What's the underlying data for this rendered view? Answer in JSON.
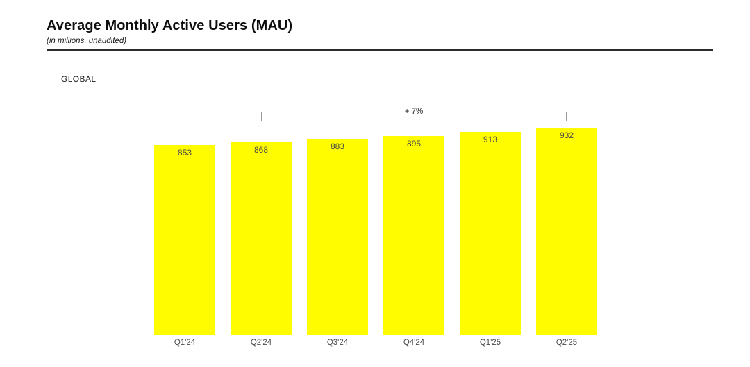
{
  "header": {
    "title": "Average Monthly Active Users (MAU)",
    "subtitle": "(in millions, unaudited)"
  },
  "section_label": "GLOBAL",
  "chart_data": {
    "type": "bar",
    "title": "Average Monthly Active Users (MAU)",
    "subtitle": "(in millions, unaudited)",
    "unit": "millions",
    "categories": [
      "Q1'24",
      "Q2'24",
      "Q3'24",
      "Q4'24",
      "Q1'25",
      "Q2'25"
    ],
    "values": [
      853,
      868,
      883,
      895,
      913,
      932
    ],
    "value_labels_shown": true,
    "annotation": {
      "label": "+ 7%",
      "from_category": "Q2'24",
      "to_category": "Q2'25",
      "from_index": 1,
      "to_index": 5
    },
    "xlabel": "",
    "ylabel": "",
    "ylim": [
      0,
      940
    ],
    "grid": false,
    "axes_shown": false,
    "legend": "none",
    "bar_color": "#FFFC00"
  },
  "colors": {
    "bar": "#FFFC00",
    "value_label": "#4a4a4a",
    "axis_label": "#4a4a4a",
    "bracket_line": "#9a9a9a",
    "title_text": "#0e0e0e"
  }
}
